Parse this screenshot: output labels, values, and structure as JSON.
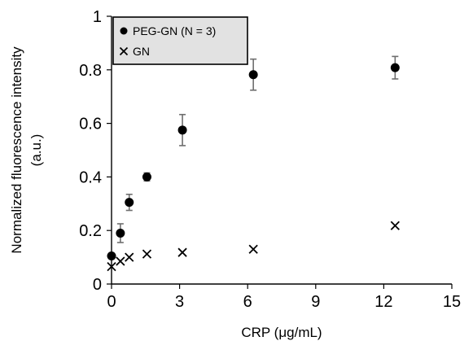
{
  "chart_data": {
    "type": "scatter",
    "xlabel": "CRP (μg/mL)",
    "ylabel_line1": "Normalized fluorescence intensity",
    "ylabel_line2": "(a.u.)",
    "xlim": [
      0,
      15
    ],
    "ylim": [
      0,
      1
    ],
    "xticks": [
      0,
      3,
      6,
      9,
      12,
      15
    ],
    "yticks": [
      0,
      0.2,
      0.4,
      0.6,
      0.8,
      1
    ],
    "ytick_labels": [
      "0",
      "0.2",
      "0.4",
      "0.6",
      "0.8",
      "1"
    ],
    "grid": false,
    "legend_position": "top-left",
    "series": [
      {
        "name": "PEG-GN (N = 3)",
        "marker": "circle",
        "color": "#000000",
        "x": [
          0,
          0.39,
          0.78,
          1.56,
          3.125,
          6.25,
          12.5
        ],
        "y": [
          0.105,
          0.19,
          0.305,
          0.4,
          0.575,
          0.782,
          0.808
        ],
        "error": [
          0.0,
          0.035,
          0.03,
          0.015,
          0.058,
          0.058,
          0.042
        ]
      },
      {
        "name": "GN",
        "marker": "cross",
        "color": "#000000",
        "x": [
          0,
          0.39,
          0.78,
          1.56,
          3.125,
          6.25,
          12.5
        ],
        "y": [
          0.065,
          0.085,
          0.1,
          0.112,
          0.118,
          0.13,
          0.218
        ]
      }
    ]
  }
}
